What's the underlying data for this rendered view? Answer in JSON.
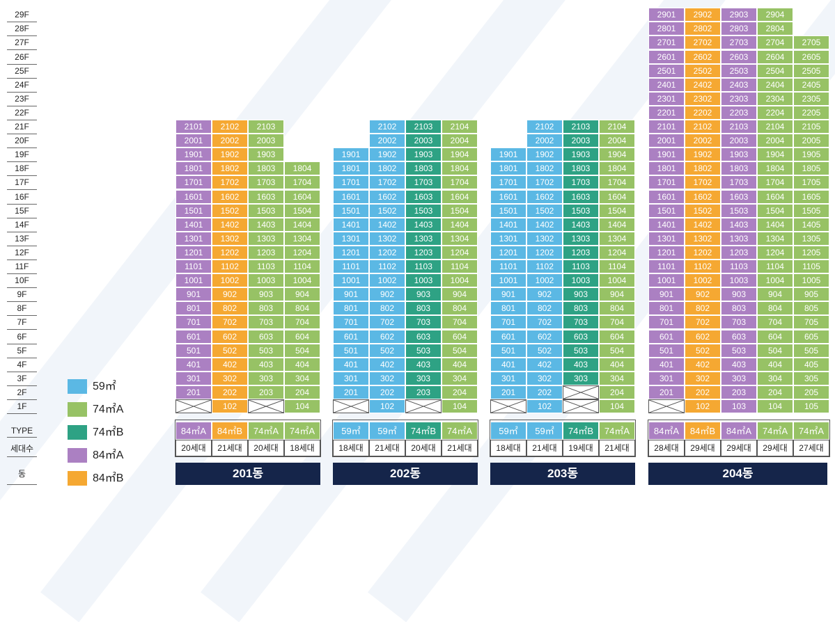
{
  "floors": [
    "29F",
    "28F",
    "27F",
    "26F",
    "25F",
    "24F",
    "23F",
    "22F",
    "21F",
    "20F",
    "19F",
    "18F",
    "17F",
    "16F",
    "15F",
    "14F",
    "13F",
    "12F",
    "11F",
    "10F",
    "9F",
    "8F",
    "7F",
    "6F",
    "5F",
    "4F",
    "3F",
    "2F",
    "1F"
  ],
  "row_labels": {
    "type": "TYPE",
    "households": "세대수",
    "building": "동"
  },
  "types": {
    "59": {
      "label": "59㎡",
      "color": "#5bb8e4"
    },
    "74A": {
      "label": "74㎡A",
      "color": "#97c265"
    },
    "74B": {
      "label": "74㎡B",
      "color": "#2ea284"
    },
    "84A": {
      "label": "84㎡A",
      "color": "#ab80c2"
    },
    "84B": {
      "label": "84㎡B",
      "color": "#f5a832"
    }
  },
  "legend": [
    "59",
    "74A",
    "74B",
    "84A",
    "84B"
  ],
  "buildings": [
    {
      "name": "201동",
      "columns": [
        {
          "type": "84A",
          "top": 21,
          "empty_first": true,
          "type_label": "84㎡A",
          "households": "20세대"
        },
        {
          "type": "84B",
          "top": 21,
          "empty_first": false,
          "type_label": "84㎡B",
          "households": "21세대"
        },
        {
          "type": "74A",
          "top": 21,
          "empty_first": true,
          "type_label": "74㎡A",
          "households": "20세대"
        },
        {
          "type": "74A",
          "top": 18,
          "empty_first": false,
          "type_label": "74㎡A",
          "households": "18세대"
        }
      ]
    },
    {
      "name": "202동",
      "columns": [
        {
          "type": "59",
          "top": 19,
          "empty_first": true,
          "type_label": "59㎡",
          "households": "18세대"
        },
        {
          "type": "59",
          "top": 21,
          "empty_first": false,
          "type_label": "59㎡",
          "households": "21세대"
        },
        {
          "type": "74B",
          "top": 21,
          "empty_first": true,
          "type_label": "74㎡B",
          "households": "20세대"
        },
        {
          "type": "74A",
          "top": 21,
          "empty_first": false,
          "type_label": "74㎡A",
          "households": "21세대"
        }
      ]
    },
    {
      "name": "203동",
      "columns": [
        {
          "type": "59",
          "top": 19,
          "empty_first": true,
          "type_label": "59㎡",
          "households": "18세대"
        },
        {
          "type": "59",
          "top": 21,
          "empty_first": false,
          "type_label": "59㎡",
          "households": "21세대"
        },
        {
          "type": "74B",
          "top": 21,
          "empty_first": true,
          "empty_second": true,
          "type_label": "74㎡B",
          "households": "19세대"
        },
        {
          "type": "74A",
          "top": 21,
          "empty_first": false,
          "type_label": "74㎡A",
          "households": "21세대"
        }
      ]
    },
    {
      "name": "204동",
      "columns": [
        {
          "type": "84A",
          "top": 29,
          "empty_first": true,
          "type_label": "84㎡A",
          "households": "28세대"
        },
        {
          "type": "84B",
          "top": 29,
          "empty_first": false,
          "type_label": "84㎡B",
          "households": "29세대"
        },
        {
          "type": "84A",
          "top": 29,
          "empty_first": false,
          "type_label": "84㎡A",
          "households": "29세대"
        },
        {
          "type": "74A",
          "top": 29,
          "empty_first": false,
          "type_label": "74㎡A",
          "households": "29세대"
        },
        {
          "type": "74A",
          "top": 27,
          "empty_first": false,
          "type_label": "74㎡A",
          "households": "27세대"
        }
      ]
    }
  ]
}
